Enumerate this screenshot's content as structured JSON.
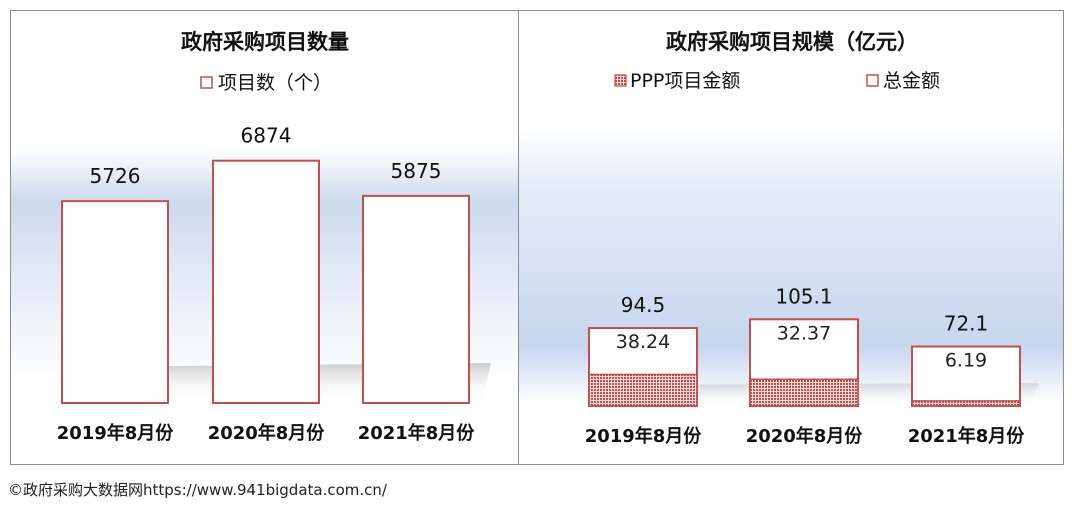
{
  "colors": {
    "bar_outline": "#c0504d",
    "pattern_fill": "#c0504d",
    "text": "#111111",
    "panel_border": "#8c8c8c"
  },
  "chart_data": [
    {
      "type": "bar",
      "title": "政府采购项目数量",
      "legend": {
        "position": "top",
        "entries": [
          "项目数（个）"
        ]
      },
      "categories": [
        "2019年8月份",
        "2020年8月份",
        "2021年8月份"
      ],
      "series": [
        {
          "name": "项目数（个）",
          "values": [
            5726,
            6874,
            5875
          ],
          "labels": [
            "5726",
            "6874",
            "5875"
          ]
        }
      ],
      "ylim": [
        0,
        8000
      ],
      "grid": false
    },
    {
      "type": "bar",
      "title": "政府采购项目规模（亿元）",
      "legend": {
        "position": "top",
        "entries": [
          "PPP项目金额",
          "总金额"
        ]
      },
      "categories": [
        "2019年8月份",
        "2020年8月份",
        "2021年8月份"
      ],
      "series": [
        {
          "name": "PPP项目金额",
          "values": [
            38.24,
            32.37,
            6.19
          ],
          "labels": [
            "38.24",
            "32.37",
            "6.19"
          ]
        },
        {
          "name": "总金额",
          "values": [
            94.5,
            105.1,
            72.1
          ],
          "labels": [
            "94.5",
            "105.1",
            "72.1"
          ]
        }
      ],
      "ylim": [
        0,
        400
      ],
      "grid": false
    }
  ],
  "footer": "©政府采购大数据网https://www.941bigdata.com.cn/"
}
